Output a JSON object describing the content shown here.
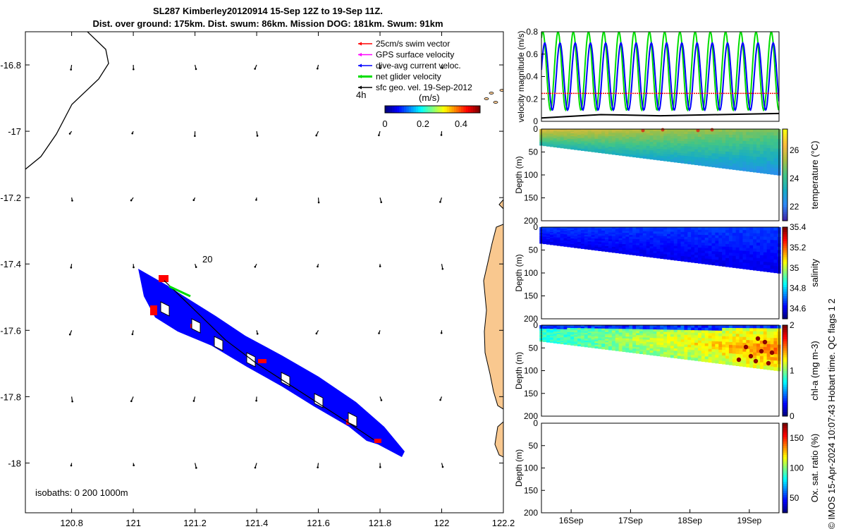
{
  "title": {
    "line1": "SL287 Kimberley20120914 15-Sep 12Z to 19-Sep 11Z.",
    "line2": "Dist. over ground: 175km. Dist. swum: 86km. Mission DOG: 181km. Swum: 91km"
  },
  "side_note": "© IMOS 15-Apr-2024 10:07:43 Hobart time. QC flags 1  2",
  "colors": {
    "swim": "#ff0000",
    "gps": "#ff00ff",
    "dac": "#0000ff",
    "net": "#00dd00",
    "sfc": "#000000",
    "land": "#f9c88f",
    "track_fill": "#0000ff",
    "track_red": "#ff0000"
  },
  "map": {
    "type": "map",
    "xlim": [
      120.65,
      122.2
    ],
    "ylim": [
      -18.15,
      -16.7
    ],
    "xticks": [
      "120.8",
      "121",
      "121.2",
      "121.4",
      "121.6",
      "121.8",
      "122",
      "122.2"
    ],
    "xtick_values": [
      120.8,
      121.0,
      121.2,
      121.4,
      121.6,
      121.8,
      122.0,
      122.2
    ],
    "yticks": [
      "-16.8",
      "-17",
      "-17.2",
      "-17.4",
      "-17.6",
      "-17.8",
      "-18"
    ],
    "ytick_values": [
      -16.8,
      -17.0,
      -17.2,
      -17.4,
      -17.6,
      -17.8,
      -18.0
    ],
    "legend": [
      {
        "label": "25cm/s swim vector",
        "color": "#ff0000"
      },
      {
        "label": "GPS surface velocity",
        "color": "#ff00ff"
      },
      {
        "label": "dive-avg current veloc.",
        "color": "#0000ff"
      },
      {
        "label": "net glider velocity",
        "color": "#00dd00"
      },
      {
        "label": "sfc geo. vel. 19-Sep-2012",
        "color": "#000000"
      }
    ],
    "legend_position": "top-right",
    "time_label": "4h",
    "colorbar_label": "(m/s)",
    "colorbar_ticks": [
      "0",
      "0.2",
      "0.4"
    ],
    "colorbar_range": [
      0,
      0.5
    ],
    "annotation_20": "20",
    "isobaths": "isobaths: 0   200   1000m",
    "track": [
      [
        121.1,
        -17.45
      ],
      [
        121.2,
        -17.54
      ],
      [
        121.3,
        -17.63
      ],
      [
        121.4,
        -17.7
      ],
      [
        121.5,
        -17.76
      ],
      [
        121.6,
        -17.82
      ],
      [
        121.7,
        -17.88
      ],
      [
        121.78,
        -17.93
      ]
    ]
  },
  "chart_data": [
    {
      "type": "line",
      "ylabel": "velocity magnitude (m/s)",
      "xlim": [
        15.5,
        19.5
      ],
      "ylim": [
        0,
        0.8
      ],
      "yticks": [
        "0",
        "0.2",
        "0.4",
        "0.6",
        "0.8"
      ],
      "series": [
        {
          "color": "#0000ff",
          "oscillation": {
            "min": 0.1,
            "max": 0.7,
            "cycles_per_day": 3.9
          }
        },
        {
          "color": "#00dd00",
          "oscillation": {
            "min": 0.1,
            "max": 0.8,
            "cycles_per_day": 3.9
          }
        },
        {
          "color": "#ff0000",
          "values_constant": 0.25
        },
        {
          "color": "#000000",
          "x": [
            15.5,
            16.5,
            17.5,
            18.5,
            19.5
          ],
          "y": [
            0.03,
            0.06,
            0.05,
            0.06,
            0.07
          ]
        }
      ]
    },
    {
      "type": "heatmap",
      "ylabel": "Depth (m)",
      "yticks": [
        "0",
        "50",
        "100",
        "150",
        "200"
      ],
      "ylim": [
        200,
        0
      ],
      "bottom_depth": {
        "x": [
          15.5,
          19.5
        ],
        "y": [
          35,
          100
        ]
      },
      "colorbar_label": "temperature (°C)",
      "colorbar_ticks": [
        "22",
        "24",
        "26"
      ],
      "colorbar_range": [
        21,
        27.5
      ],
      "colormap": "parula"
    },
    {
      "type": "heatmap",
      "ylabel": "Depth (m)",
      "yticks": [
        "0",
        "50",
        "100",
        "150",
        "200"
      ],
      "ylim": [
        200,
        0
      ],
      "bottom_depth": {
        "x": [
          15.5,
          19.5
        ],
        "y": [
          35,
          100
        ]
      },
      "colorbar_label": "salinity",
      "colorbar_ticks": [
        "34.6",
        "34.8",
        "35",
        "35.2",
        "35.4"
      ],
      "colorbar_range": [
        34.5,
        35.4
      ],
      "colormap": "jet"
    },
    {
      "type": "heatmap",
      "ylabel": "Depth (m)",
      "yticks": [
        "0",
        "50",
        "100",
        "150",
        "200"
      ],
      "ylim": [
        200,
        0
      ],
      "bottom_depth": {
        "x": [
          15.5,
          19.5
        ],
        "y": [
          35,
          100
        ]
      },
      "colorbar_label": "chl-a (mg m-3)",
      "colorbar_ticks": [
        "0",
        "1",
        "2"
      ],
      "colorbar_range": [
        0,
        2
      ],
      "colormap": "jet"
    },
    {
      "type": "heatmap",
      "ylabel": "Depth (m)",
      "yticks": [
        "0",
        "50",
        "100",
        "150",
        "200"
      ],
      "ylim": [
        200,
        0
      ],
      "colorbar_label": "Ox. sat. ratio (%)",
      "colorbar_ticks": [
        "50",
        "100",
        "150"
      ],
      "colorbar_range": [
        25,
        175
      ],
      "colormap": "jet",
      "xticks": [
        "16Sep",
        "17Sep",
        "18Sep",
        "19Sep"
      ],
      "xtick_values": [
        16,
        17,
        18,
        19
      ]
    }
  ]
}
